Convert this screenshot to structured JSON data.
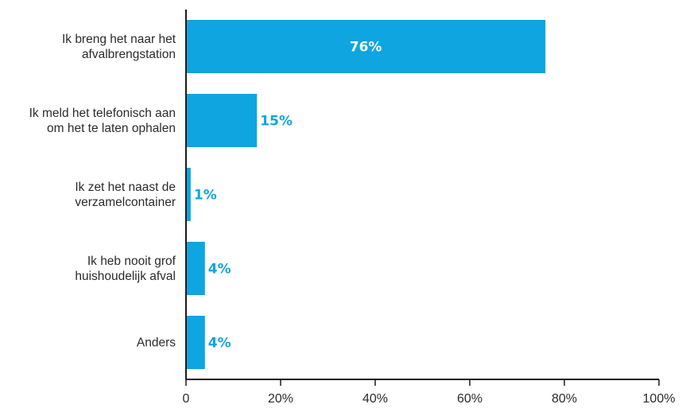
{
  "chart_data": {
    "type": "bar",
    "orientation": "horizontal",
    "categories": [
      [
        "Ik breng het naar het",
        "afvalbrengstation"
      ],
      [
        "Ik meld het telefonisch aan",
        "om het te laten ophalen"
      ],
      [
        "Ik zet het naast de",
        "verzamelcontainer"
      ],
      [
        "Ik heb nooit grof",
        "huishoudelijk afval"
      ],
      [
        "Anders"
      ]
    ],
    "values": [
      76,
      15,
      1,
      4,
      4
    ],
    "value_labels": [
      "76%",
      "15%",
      "1%",
      "4%",
      "4%"
    ],
    "xlim": [
      0,
      100
    ],
    "xticks": [
      0,
      20,
      40,
      60,
      80,
      100
    ],
    "xtick_labels": [
      "0",
      "20%",
      "40%",
      "60%",
      "80%",
      "100%"
    ],
    "title": "",
    "xlabel": "",
    "ylabel": "",
    "grid": false,
    "colors": {
      "bar": "#0ea5e0",
      "inside_label": "#ffffff",
      "outside_label": "#0ea5e0",
      "axis": "#1a1a1a",
      "text": "#2b2b2b"
    }
  }
}
